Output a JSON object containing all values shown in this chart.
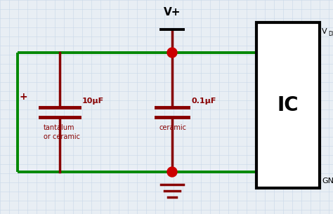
{
  "bg_color": "#e8eef4",
  "grid_color": "#c8d8e8",
  "wire_color": "#008800",
  "component_color": "#880000",
  "black": "#000000",
  "junction_color": "#cc0000",
  "vplus_label": "V+",
  "vdd_label": "V",
  "vdd_sub": "DD",
  "gnd_label": "GND",
  "ic_label": "IC",
  "cap1_label": "10μF",
  "cap1_sub": "tantalum\nor ceramic",
  "cap2_label": "0.1μF",
  "cap2_sub": "ceramic",
  "plus_label": "+"
}
